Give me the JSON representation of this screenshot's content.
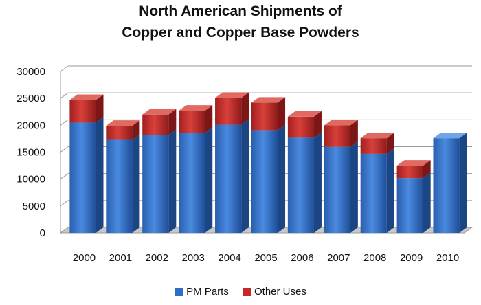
{
  "chart_data": {
    "type": "bar",
    "stacked": true,
    "title": "North American Shipments of Copper and Copper Base Powders",
    "title_lines": [
      "North American Shipments of",
      "Copper and Copper Base Powders"
    ],
    "categories": [
      "2000",
      "2001",
      "2002",
      "2003",
      "2004",
      "2005",
      "2006",
      "2007",
      "2008",
      "2009",
      "2010"
    ],
    "series": [
      {
        "name": "PM Parts",
        "color": "#2f6ec8",
        "values": [
          20500,
          17300,
          18200,
          18600,
          20100,
          19100,
          17700,
          16000,
          14700,
          10200,
          17600
        ]
      },
      {
        "name": "Other Uses",
        "color": "#c62828",
        "values": [
          4200,
          2600,
          3800,
          4100,
          5000,
          5100,
          3900,
          4000,
          2900,
          2300,
          0
        ]
      }
    ],
    "ylim": [
      0,
      30000
    ],
    "yticks": [
      "0",
      "5000",
      "10000",
      "15000",
      "20000",
      "25000",
      "30000"
    ],
    "ytick_values": [
      0,
      5000,
      10000,
      15000,
      20000,
      25000,
      30000
    ],
    "grid": true,
    "legend_position": "bottom",
    "style": "3d"
  }
}
